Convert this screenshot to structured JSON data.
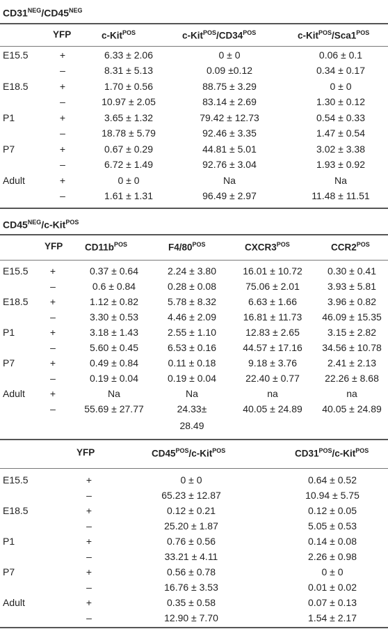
{
  "table1": {
    "title_main1": "CD31",
    "title_sup1": "NEG",
    "title_main2": "/CD45",
    "title_sup2": "NEG",
    "headers": {
      "yfp": "YFP",
      "col1_main": "c-Kit",
      "col1_sup": "POS",
      "col2_main1": "c-Kit",
      "col2_sup1": "POS",
      "col2_main2": "/CD34",
      "col2_sup2": "POS",
      "col3_main1": "c-Kit",
      "col3_sup1": "POS",
      "col3_main2": "/Sca1",
      "col3_sup2": "POS"
    },
    "rows": [
      {
        "stage": "E15.5",
        "yfp": "+",
        "c1": "6.33 ± 2.06",
        "c2": "0 ± 0",
        "c3": "0.06 ± 0.1"
      },
      {
        "stage": "",
        "yfp": "–",
        "c1": "8.31 ± 5.13",
        "c2": "0.09 ±0.12",
        "c3": "0.34 ± 0.17"
      },
      {
        "stage": "E18.5",
        "yfp": "+",
        "c1": "1.70 ± 0.56",
        "c2": "88.75 ± 3.29",
        "c3": "0 ± 0"
      },
      {
        "stage": "",
        "yfp": "–",
        "c1": "10.97 ± 2.05",
        "c2": "83.14 ± 2.69",
        "c3": "1.30 ± 0.12"
      },
      {
        "stage": "P1",
        "yfp": "+",
        "c1": "3.65 ± 1.32",
        "c2": "79.42 ± 12.73",
        "c3": "0.54 ± 0.33"
      },
      {
        "stage": "",
        "yfp": "–",
        "c1": "18.78 ± 5.79",
        "c2": "92.46 ± 3.35",
        "c3": "1.47 ± 0.54"
      },
      {
        "stage": "P7",
        "yfp": "+",
        "c1": "0.67 ± 0.29",
        "c2": "44.81 ± 5.01",
        "c3": "3.02 ± 3.38"
      },
      {
        "stage": "",
        "yfp": "–",
        "c1": "6.72 ± 1.49",
        "c2": "92.76 ± 3.04",
        "c3": "1.93 ± 0.92"
      },
      {
        "stage": "Adult",
        "yfp": "+",
        "c1": "0 ± 0",
        "c2": "Na",
        "c3": "Na"
      },
      {
        "stage": "",
        "yfp": "–",
        "c1": "1.61 ± 1.31",
        "c2": "96.49 ± 2.97",
        "c3": "11.48 ± 11.51"
      }
    ]
  },
  "table2": {
    "title_main1": "CD45",
    "title_sup1": "NEG",
    "title_main2": "/c-Kit",
    "title_sup2": "POS",
    "headers": {
      "yfp": "YFP",
      "col1_main": "CD11b",
      "col1_sup": "POS",
      "col2_main": "F4/80",
      "col2_sup": "POS",
      "col3_main": "CXCR3",
      "col3_sup": "POS",
      "col4_main": "CCR2",
      "col4_sup": "POS"
    },
    "rows": [
      {
        "stage": "E15.5",
        "yfp": "+",
        "c1": "0.37 ± 0.64",
        "c2": "2.24 ± 3.80",
        "c3": "16.01 ± 10.72",
        "c4": "0.30 ± 0.41"
      },
      {
        "stage": "",
        "yfp": "–",
        "c1": "0.6 ± 0.84",
        "c2": "0.28 ± 0.08",
        "c3": "75.06 ± 2.01",
        "c4": "3.93 ± 5.81"
      },
      {
        "stage": "E18.5",
        "yfp": "+",
        "c1": "1.12 ± 0.82",
        "c2": "5.78 ± 8.32",
        "c3": "6.63 ± 1.66",
        "c4": "3.96 ± 0.82"
      },
      {
        "stage": "",
        "yfp": "–",
        "c1": "3.30 ± 0.53",
        "c2": "4.46 ± 2.09",
        "c3": "16.81 ± 11.73",
        "c4": "46.09 ± 15.35"
      },
      {
        "stage": "P1",
        "yfp": "+",
        "c1": "3.18 ± 1.43",
        "c2": "2.55 ± 1.10",
        "c3": "12.83 ± 2.65",
        "c4": "3.15 ± 2.82"
      },
      {
        "stage": "",
        "yfp": "–",
        "c1": "5.60 ± 0.45",
        "c2": "6.53 ± 0.16",
        "c3": "44.57 ± 17.16",
        "c4": "34.56 ± 10.78"
      },
      {
        "stage": "P7",
        "yfp": "+",
        "c1": "0.49 ± 0.84",
        "c2": "0.11 ± 0.18",
        "c3": "9.18 ± 3.76",
        "c4": "2.41 ± 2.13"
      },
      {
        "stage": "",
        "yfp": "–",
        "c1": "0.19 ± 0.04",
        "c2": "0.19 ± 0.04",
        "c3": "22.40 ± 0.77",
        "c4": "22.26 ± 8.68"
      },
      {
        "stage": "Adult",
        "yfp": "+",
        "c1": "Na",
        "c2": "Na",
        "c3": "na",
        "c4": "na"
      },
      {
        "stage": "",
        "yfp": "–",
        "c1": "55.69 ± 27.77",
        "c2": "24.33±",
        "c3": "40.05 ± 24.89",
        "c4": "40.05 ± 24.89"
      },
      {
        "stage": "",
        "yfp": "",
        "c1": "",
        "c2": "28.49",
        "c3": "",
        "c4": ""
      }
    ]
  },
  "table3": {
    "headers": {
      "yfp": "YFP",
      "col1_main1": "CD45",
      "col1_sup1": "POS",
      "col1_main2": "/c-Kit",
      "col1_sup2": "POS",
      "col2_main1": "CD31",
      "col2_sup1": "POS",
      "col2_main2": "/c-Kit",
      "col2_sup2": "POS"
    },
    "rows": [
      {
        "stage": "E15.5",
        "yfp": "+",
        "c1": "0 ± 0",
        "c2": "0.64 ± 0.52"
      },
      {
        "stage": "",
        "yfp": "–",
        "c1": "65.23 ± 12.87",
        "c2": "10.94 ± 5.75"
      },
      {
        "stage": "E18.5",
        "yfp": "+",
        "c1": "0.12 ± 0.21",
        "c2": "0.12 ± 0.05"
      },
      {
        "stage": "",
        "yfp": "–",
        "c1": "25.20 ± 1.87",
        "c2": "5.05 ± 0.53"
      },
      {
        "stage": "P1",
        "yfp": "+",
        "c1": "0.76 ± 0.56",
        "c2": "0.14 ± 0.08"
      },
      {
        "stage": "",
        "yfp": "–",
        "c1": "33.21 ± 4.11",
        "c2": "2.26 ± 0.98"
      },
      {
        "stage": "P7",
        "yfp": "+",
        "c1": "0.56 ± 0.78",
        "c2": "0 ± 0"
      },
      {
        "stage": "",
        "yfp": "–",
        "c1": "16.76 ± 3.53",
        "c2": "0.01 ± 0.02"
      },
      {
        "stage": "Adult",
        "yfp": "+",
        "c1": "0.35 ± 0.58",
        "c2": "0.07 ± 0.13"
      },
      {
        "stage": "",
        "yfp": "–",
        "c1": "12.90 ± 7.70",
        "c2": "1.54 ± 2.17"
      }
    ]
  }
}
